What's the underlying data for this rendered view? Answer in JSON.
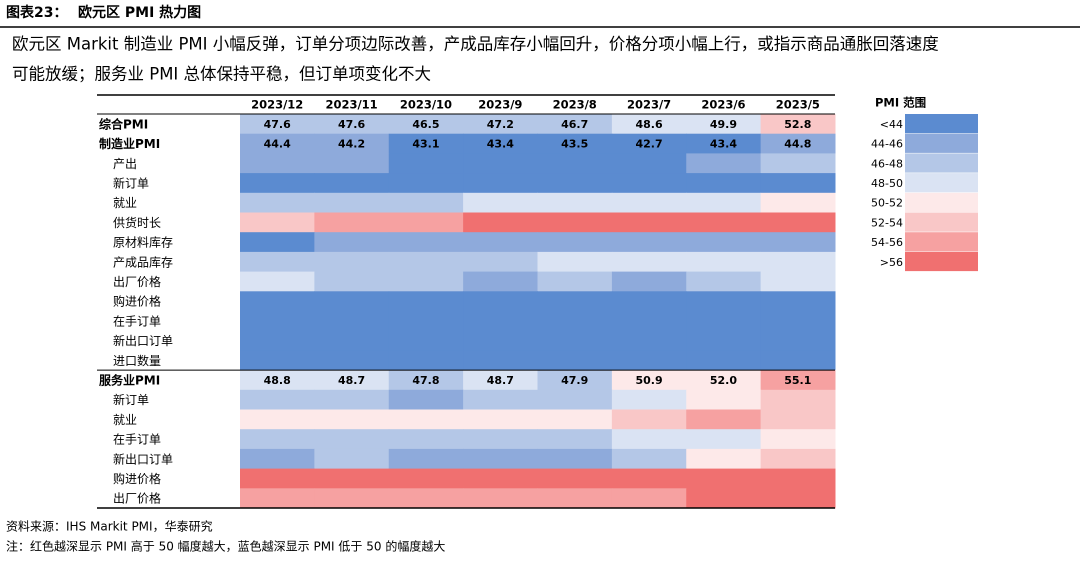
{
  "header": {
    "label": "图表23：",
    "title": "欧元区 PMI 热力图"
  },
  "subtitle": [
    "欧元区 Markit 制造业 PMI 小幅反弹，订单分项边际改善，产成品库存小幅回升，价格分项小幅上行，或指示商品通胀回落速度",
    "可能放缓；服务业 PMI 总体保持平稳，但订单项变化不大"
  ],
  "table": {
    "columns": [
      "2023/12",
      "2023/11",
      "2023/10",
      "2023/9",
      "2023/8",
      "2023/7",
      "2023/6",
      "2023/5"
    ],
    "rows": [
      {
        "label": "综合PMI",
        "main": true,
        "values": [
          47.6,
          47.6,
          46.5,
          47.2,
          46.7,
          48.6,
          49.9,
          52.8
        ],
        "levels": [
          2,
          2,
          2,
          2,
          2,
          3,
          3,
          5
        ]
      },
      {
        "label": "制造业PMI",
        "main": true,
        "values": [
          44.4,
          44.2,
          43.1,
          43.4,
          43.5,
          42.7,
          43.4,
          44.8
        ],
        "levels": [
          1,
          1,
          0,
          0,
          0,
          0,
          0,
          1
        ]
      },
      {
        "label": "产出",
        "levels": [
          1,
          1,
          0,
          0,
          0,
          0,
          1,
          2
        ]
      },
      {
        "label": "新订单",
        "levels": [
          0,
          0,
          0,
          0,
          0,
          0,
          0,
          0
        ]
      },
      {
        "label": "就业",
        "levels": [
          2,
          2,
          2,
          3,
          3,
          3,
          3,
          4
        ]
      },
      {
        "label": "供货时长",
        "levels": [
          5,
          6,
          6,
          7,
          7,
          7,
          7,
          7
        ]
      },
      {
        "label": "原材料库存",
        "levels": [
          0,
          1,
          1,
          1,
          1,
          1,
          1,
          1
        ]
      },
      {
        "label": "产成品库存",
        "levels": [
          2,
          2,
          2,
          2,
          3,
          3,
          3,
          3
        ]
      },
      {
        "label": "出厂价格",
        "levels": [
          3,
          2,
          2,
          1,
          2,
          1,
          2,
          3
        ]
      },
      {
        "label": "购进价格",
        "levels": [
          0,
          0,
          0,
          0,
          0,
          0,
          0,
          0
        ]
      },
      {
        "label": "在手订单",
        "levels": [
          0,
          0,
          0,
          0,
          0,
          0,
          0,
          0
        ]
      },
      {
        "label": "新出口订单",
        "levels": [
          0,
          0,
          0,
          0,
          0,
          0,
          0,
          0
        ]
      },
      {
        "label": "进口数量",
        "levels": [
          0,
          0,
          0,
          0,
          0,
          0,
          0,
          0
        ]
      },
      {
        "label": "服务业PMI",
        "main": true,
        "values": [
          48.8,
          48.7,
          47.8,
          48.7,
          47.9,
          50.9,
          52.0,
          55.1
        ],
        "value_labels": [
          "48.8",
          "48.7",
          "47.8",
          "48.7",
          "47.9",
          "50.9",
          "52.0",
          "55.1"
        ],
        "levels": [
          3,
          3,
          2,
          3,
          2,
          4,
          4,
          6
        ]
      },
      {
        "label": "新订单",
        "levels": [
          2,
          2,
          1,
          2,
          2,
          3,
          4,
          5
        ]
      },
      {
        "label": "就业",
        "levels": [
          4,
          4,
          4,
          4,
          4,
          5,
          6,
          5
        ]
      },
      {
        "label": "在手订单",
        "levels": [
          2,
          2,
          2,
          2,
          2,
          3,
          3,
          4
        ]
      },
      {
        "label": "新出口订单",
        "levels": [
          1,
          2,
          1,
          1,
          1,
          2,
          4,
          5
        ]
      },
      {
        "label": "购进价格",
        "levels": [
          7,
          7,
          7,
          7,
          7,
          7,
          7,
          7
        ]
      },
      {
        "label": "出厂价格",
        "levels": [
          6,
          6,
          6,
          6,
          6,
          6,
          7,
          7
        ]
      }
    ]
  },
  "legend": {
    "title": "PMI 范围",
    "items": [
      {
        "label": "<44",
        "color": "#5b8bd0"
      },
      {
        "label": "44-46",
        "color": "#8eaadb"
      },
      {
        "label": "46-48",
        "color": "#b4c7e7"
      },
      {
        "label": "48-50",
        "color": "#dae3f3"
      },
      {
        "label": "50-52",
        "color": "#fde9e9"
      },
      {
        "label": "52-54",
        "color": "#f9c7c7"
      },
      {
        "label": "54-56",
        "color": "#f6a1a1"
      },
      {
        "label": ">56",
        "color": "#f07070"
      }
    ]
  },
  "footer": [
    "资料来源：IHS Markit PMI，华泰研究",
    "注：红色越深显示 PMI 高于 50 幅度越大，蓝色越深显示 PMI 低于 50 的幅度越大"
  ]
}
